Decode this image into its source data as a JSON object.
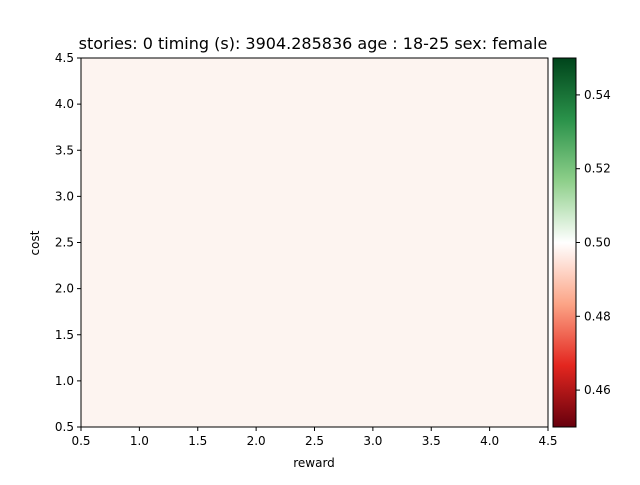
{
  "chart_data": {
    "type": "heatmap",
    "title": "stories: 0 timing (s): 3904.285836 age : 18-25 sex: female",
    "xlabel": "reward",
    "ylabel": "cost",
    "xlim": [
      0.5,
      4.5
    ],
    "ylim": [
      0.5,
      4.5
    ],
    "xticks": [
      "0.5",
      "1.0",
      "1.5",
      "2.0",
      "2.5",
      "3.0",
      "3.5",
      "4.0",
      "4.5"
    ],
    "yticks": [
      "0.5",
      "1.0",
      "1.5",
      "2.0",
      "2.5",
      "3.0",
      "3.5",
      "4.0",
      "4.5"
    ],
    "grid": false,
    "cell_value": 0.4995,
    "cell_color": "#fdf4f0",
    "colorbar": {
      "colormap": "RdYlGn-like (red-white-green)",
      "range": [
        0.45,
        0.55
      ],
      "ticks": [
        "0.46",
        "0.48",
        "0.50",
        "0.52",
        "0.54"
      ],
      "tick_values": [
        0.46,
        0.48,
        0.5,
        0.52,
        0.54
      ],
      "stops": [
        "#67000d",
        "#e3261f",
        "#fca486",
        "#ffffff",
        "#8ecf8a",
        "#2a924a",
        "#00441b"
      ]
    }
  }
}
